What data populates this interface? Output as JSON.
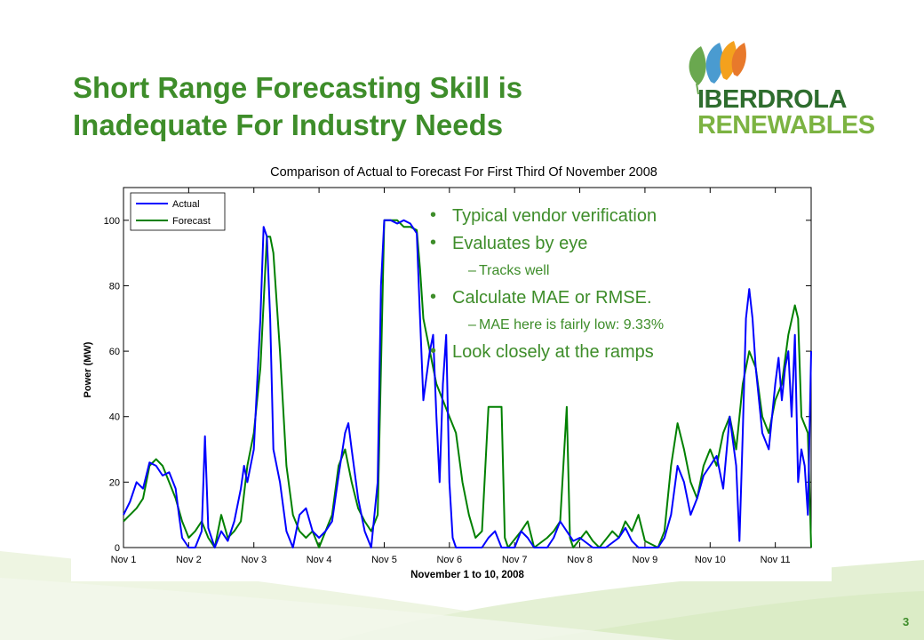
{
  "slide": {
    "title": "Short Range Forecasting Skill is Inadequate For Industry Needs",
    "page_number": "3"
  },
  "logo": {
    "line1": "IBERDROLA",
    "line2": "RENEWABLES",
    "colors": [
      "#6aa84f",
      "#4a9bd0",
      "#f4a11d",
      "#e8792b",
      "#2e6d2e",
      "#7cb342"
    ]
  },
  "bullets": [
    {
      "level": 1,
      "text": "Typical vendor verification"
    },
    {
      "level": 1,
      "text": "Evaluates by eye"
    },
    {
      "level": 2,
      "text": "Tracks well"
    },
    {
      "level": 1,
      "text": "Calculate MAE or RMSE."
    },
    {
      "level": 2,
      "text": "MAE here is fairly low: 9.33%"
    },
    {
      "level": 1,
      "text": "Look closely at the ramps"
    }
  ],
  "theme": {
    "accent": "#3e8d2a",
    "actual_color": "#0000ff",
    "forecast_color": "#008000"
  },
  "chart_data": {
    "type": "line",
    "title": "Comparison of Actual to Forecast For First Third Of November 2008",
    "xlabel": "November 1 to 10, 2008",
    "ylabel": "Power (MW)",
    "xlim": [
      0,
      10
    ],
    "ylim": [
      0,
      110
    ],
    "x_ticks": [
      0,
      1,
      2,
      3,
      4,
      5,
      6,
      7,
      8,
      9,
      10
    ],
    "x_tick_labels": [
      "Nov 1",
      "Nov 2",
      "Nov 3",
      "Nov 4",
      "Nov 5",
      "Nov 6",
      "Nov 7",
      "Nov 8",
      "Nov 9",
      "Nov 10",
      "Nov 11"
    ],
    "y_ticks": [
      0,
      20,
      40,
      60,
      80,
      100
    ],
    "y_tick_labels": [
      "0",
      "20",
      "40",
      "60",
      "80",
      "100"
    ],
    "grid": false,
    "legend_position": "top-left",
    "series": [
      {
        "name": "Actual",
        "color": "#0000ff",
        "points": [
          [
            0,
            10
          ],
          [
            0.1,
            14
          ],
          [
            0.2,
            20
          ],
          [
            0.3,
            18
          ],
          [
            0.4,
            26
          ],
          [
            0.5,
            25
          ],
          [
            0.6,
            22
          ],
          [
            0.7,
            23
          ],
          [
            0.8,
            18
          ],
          [
            0.85,
            10
          ],
          [
            0.9,
            3
          ],
          [
            1.0,
            0
          ],
          [
            1.1,
            0
          ],
          [
            1.2,
            5
          ],
          [
            1.25,
            34
          ],
          [
            1.3,
            6
          ],
          [
            1.4,
            0
          ],
          [
            1.5,
            5
          ],
          [
            1.6,
            2
          ],
          [
            1.7,
            8
          ],
          [
            1.8,
            18
          ],
          [
            1.85,
            25
          ],
          [
            1.9,
            20
          ],
          [
            2.0,
            30
          ],
          [
            2.1,
            70
          ],
          [
            2.15,
            98
          ],
          [
            2.2,
            95
          ],
          [
            2.25,
            70
          ],
          [
            2.3,
            30
          ],
          [
            2.4,
            20
          ],
          [
            2.5,
            5
          ],
          [
            2.6,
            0
          ],
          [
            2.7,
            10
          ],
          [
            2.8,
            12
          ],
          [
            2.9,
            5
          ],
          [
            3.0,
            3
          ],
          [
            3.1,
            5
          ],
          [
            3.2,
            8
          ],
          [
            3.3,
            22
          ],
          [
            3.4,
            35
          ],
          [
            3.45,
            38
          ],
          [
            3.5,
            30
          ],
          [
            3.6,
            15
          ],
          [
            3.7,
            5
          ],
          [
            3.8,
            0
          ],
          [
            3.9,
            20
          ],
          [
            3.95,
            80
          ],
          [
            4.0,
            100
          ],
          [
            4.1,
            100
          ],
          [
            4.2,
            99
          ],
          [
            4.3,
            100
          ],
          [
            4.4,
            99
          ],
          [
            4.5,
            96
          ],
          [
            4.55,
            70
          ],
          [
            4.6,
            45
          ],
          [
            4.7,
            60
          ],
          [
            4.75,
            65
          ],
          [
            4.8,
            40
          ],
          [
            4.85,
            20
          ],
          [
            4.9,
            50
          ],
          [
            4.95,
            65
          ],
          [
            5.0,
            20
          ],
          [
            5.05,
            3
          ],
          [
            5.1,
            0
          ],
          [
            5.5,
            0
          ],
          [
            5.6,
            3
          ],
          [
            5.7,
            5
          ],
          [
            5.8,
            0
          ],
          [
            6.0,
            0
          ],
          [
            6.1,
            5
          ],
          [
            6.2,
            3
          ],
          [
            6.3,
            0
          ],
          [
            6.5,
            0
          ],
          [
            6.6,
            3
          ],
          [
            6.7,
            8
          ],
          [
            6.8,
            5
          ],
          [
            6.9,
            2
          ],
          [
            7.0,
            3
          ],
          [
            7.2,
            0
          ],
          [
            7.4,
            0
          ],
          [
            7.6,
            3
          ],
          [
            7.7,
            6
          ],
          [
            7.8,
            2
          ],
          [
            7.9,
            0
          ],
          [
            8.0,
            0
          ],
          [
            8.2,
            0
          ],
          [
            8.3,
            3
          ],
          [
            8.4,
            10
          ],
          [
            8.5,
            25
          ],
          [
            8.6,
            20
          ],
          [
            8.7,
            10
          ],
          [
            8.8,
            15
          ],
          [
            8.9,
            22
          ],
          [
            9.0,
            25
          ],
          [
            9.1,
            28
          ],
          [
            9.2,
            18
          ],
          [
            9.3,
            40
          ],
          [
            9.4,
            25
          ],
          [
            9.45,
            2
          ],
          [
            9.5,
            35
          ],
          [
            9.55,
            70
          ],
          [
            9.6,
            79
          ],
          [
            9.65,
            70
          ],
          [
            9.7,
            55
          ],
          [
            9.8,
            35
          ],
          [
            9.9,
            30
          ],
          [
            10.0,
            50
          ],
          [
            10.05,
            58
          ],
          [
            10.1,
            45
          ],
          [
            10.15,
            55
          ],
          [
            10.2,
            60
          ],
          [
            10.25,
            40
          ],
          [
            10.3,
            65
          ],
          [
            10.35,
            20
          ],
          [
            10.4,
            30
          ],
          [
            10.45,
            25
          ],
          [
            10.5,
            10
          ],
          [
            10.55,
            60
          ]
        ]
      },
      {
        "name": "Forecast",
        "color": "#008000",
        "points": [
          [
            0,
            8
          ],
          [
            0.1,
            10
          ],
          [
            0.2,
            12
          ],
          [
            0.3,
            15
          ],
          [
            0.4,
            25
          ],
          [
            0.5,
            27
          ],
          [
            0.6,
            25
          ],
          [
            0.7,
            20
          ],
          [
            0.8,
            15
          ],
          [
            0.9,
            8
          ],
          [
            1.0,
            3
          ],
          [
            1.1,
            5
          ],
          [
            1.2,
            8
          ],
          [
            1.3,
            3
          ],
          [
            1.4,
            0
          ],
          [
            1.5,
            10
          ],
          [
            1.6,
            3
          ],
          [
            1.7,
            5
          ],
          [
            1.8,
            8
          ],
          [
            1.9,
            25
          ],
          [
            2.0,
            35
          ],
          [
            2.1,
            55
          ],
          [
            2.2,
            95
          ],
          [
            2.25,
            95
          ],
          [
            2.3,
            90
          ],
          [
            2.4,
            60
          ],
          [
            2.5,
            25
          ],
          [
            2.6,
            10
          ],
          [
            2.7,
            5
          ],
          [
            2.8,
            3
          ],
          [
            2.9,
            5
          ],
          [
            3.0,
            0
          ],
          [
            3.1,
            5
          ],
          [
            3.2,
            10
          ],
          [
            3.3,
            25
          ],
          [
            3.4,
            30
          ],
          [
            3.5,
            20
          ],
          [
            3.6,
            12
          ],
          [
            3.7,
            8
          ],
          [
            3.8,
            5
          ],
          [
            3.9,
            10
          ],
          [
            4.0,
            100
          ],
          [
            4.1,
            100
          ],
          [
            4.2,
            100
          ],
          [
            4.3,
            98
          ],
          [
            4.4,
            98
          ],
          [
            4.5,
            97
          ],
          [
            4.55,
            85
          ],
          [
            4.6,
            70
          ],
          [
            4.7,
            60
          ],
          [
            4.8,
            50
          ],
          [
            4.9,
            45
          ],
          [
            5.0,
            40
          ],
          [
            5.1,
            35
          ],
          [
            5.2,
            20
          ],
          [
            5.3,
            10
          ],
          [
            5.4,
            3
          ],
          [
            5.5,
            5
          ],
          [
            5.6,
            43
          ],
          [
            5.7,
            43
          ],
          [
            5.8,
            43
          ],
          [
            5.85,
            3
          ],
          [
            5.9,
            0
          ],
          [
            6.1,
            5
          ],
          [
            6.2,
            8
          ],
          [
            6.3,
            0
          ],
          [
            6.5,
            3
          ],
          [
            6.6,
            5
          ],
          [
            6.7,
            8
          ],
          [
            6.8,
            43
          ],
          [
            6.85,
            3
          ],
          [
            6.9,
            0
          ],
          [
            7.1,
            5
          ],
          [
            7.2,
            2
          ],
          [
            7.3,
            0
          ],
          [
            7.5,
            5
          ],
          [
            7.6,
            3
          ],
          [
            7.7,
            8
          ],
          [
            7.8,
            5
          ],
          [
            7.9,
            10
          ],
          [
            8.0,
            2
          ],
          [
            8.2,
            0
          ],
          [
            8.3,
            5
          ],
          [
            8.4,
            25
          ],
          [
            8.5,
            38
          ],
          [
            8.6,
            30
          ],
          [
            8.7,
            20
          ],
          [
            8.8,
            15
          ],
          [
            8.9,
            25
          ],
          [
            9.0,
            30
          ],
          [
            9.1,
            25
          ],
          [
            9.2,
            35
          ],
          [
            9.3,
            40
          ],
          [
            9.4,
            30
          ],
          [
            9.5,
            50
          ],
          [
            9.6,
            60
          ],
          [
            9.7,
            55
          ],
          [
            9.8,
            40
          ],
          [
            9.9,
            35
          ],
          [
            10.0,
            45
          ],
          [
            10.1,
            50
          ],
          [
            10.2,
            65
          ],
          [
            10.3,
            74
          ],
          [
            10.35,
            70
          ],
          [
            10.4,
            40
          ],
          [
            10.5,
            35
          ],
          [
            10.55,
            0
          ]
        ]
      }
    ]
  }
}
